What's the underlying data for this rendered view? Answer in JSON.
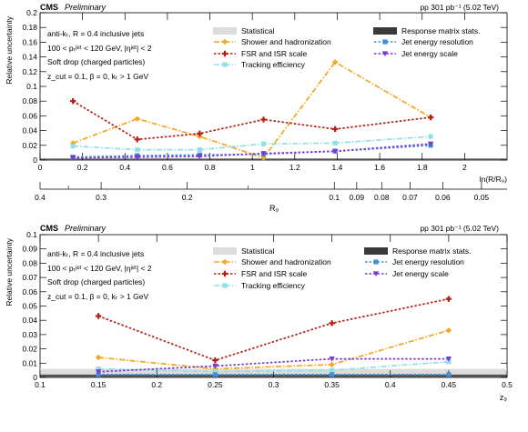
{
  "colors": {
    "shower": "#f5a623",
    "fsr": "#b22214",
    "tracking": "#8ee0e6",
    "jer": "#3f8fd8",
    "jes": "#7a38d8",
    "statistical": "#dcdcdc",
    "response": "#3a3a3a"
  },
  "markers": {
    "shower": "diamond",
    "fsr": "plus",
    "tracking": "square",
    "jer": "square",
    "jes": "triangle-down"
  },
  "labels": {
    "cms": "CMS",
    "preliminary": "Preliminary",
    "lumi": "pp 301 pb⁻¹ (5.02 TeV)",
    "algo": "anti-kₜ, R = 0.4 inclusive jets",
    "pt_cut": "100 < pₜʲᵉᵗ < 120 GeV, |ηʲᵉᵗ| < 2",
    "groomer": "Soft drop (charged particles)",
    "params_top": "z_cut = 0.1, β = 0, kₜ > 1 GeV",
    "params_bottom": "z_cut = 0.1, β = 0, kₜ > 1 GeV"
  },
  "chart_data": [
    {
      "type": "line",
      "xlabel": "ln(R/R₉)",
      "ylabel": "Relative uncertainty",
      "xlim": [
        0,
        2.2
      ],
      "ylim": [
        0,
        0.2
      ],
      "x_ticks": [
        "0",
        "0.2",
        "0.4",
        "0.6",
        "0.8",
        "1",
        "1.2",
        "1.4",
        "1.6",
        "1.8",
        "2"
      ],
      "y_ticks": [
        "0",
        "0.02",
        "0.04",
        "0.06",
        "0.08",
        "0.1",
        "0.12",
        "0.14",
        "0.16",
        "0.18",
        "0.2"
      ],
      "secondary_axis": {
        "label": "R₉",
        "ticks": [
          "0.4",
          "0.3",
          "0.2",
          "0.1",
          "0.09",
          "0.08",
          "0.07",
          "0.06",
          "0.05"
        ]
      },
      "x": [
        0.155,
        0.458,
        0.752,
        1.053,
        1.39,
        1.84
      ],
      "series": [
        {
          "name": "Statistical",
          "key": "statistical",
          "style": "band",
          "values": [
            0.002,
            0.002,
            0.002,
            0.002,
            0.002,
            0.002
          ]
        },
        {
          "name": "Response matrix stats.",
          "key": "response",
          "style": "band",
          "values": [
            0.002,
            0.002,
            0.002,
            0.002,
            0.002,
            0.002
          ]
        },
        {
          "name": "Shower and hadronization",
          "key": "shower",
          "values": [
            0.023,
            0.056,
            0.032,
            0.003,
            0.133,
            0.058
          ]
        },
        {
          "name": "FSR and ISR scale",
          "key": "fsr",
          "values": [
            0.08,
            0.028,
            0.036,
            0.055,
            0.042,
            0.058
          ]
        },
        {
          "name": "Tracking efficiency",
          "key": "tracking",
          "values": [
            0.019,
            0.014,
            0.014,
            0.022,
            0.023,
            0.032
          ]
        },
        {
          "name": "Jet energy resolution",
          "key": "jer",
          "values": [
            0.004,
            0.006,
            0.007,
            0.008,
            0.012,
            0.02
          ]
        },
        {
          "name": "Jet energy scale",
          "key": "jes",
          "values": [
            0.003,
            0.004,
            0.005,
            0.009,
            0.012,
            0.022
          ]
        }
      ],
      "grid": false,
      "legend": "top-right"
    },
    {
      "type": "line",
      "xlabel": "z₉",
      "ylabel": "Relative uncertainty",
      "xlim": [
        0.1,
        0.5
      ],
      "ylim": [
        0,
        0.1
      ],
      "x_ticks": [
        "0.1",
        "0.15",
        "0.2",
        "0.25",
        "0.3",
        "0.35",
        "0.4",
        "0.45",
        "0.5"
      ],
      "y_ticks": [
        "0",
        "0.01",
        "0.02",
        "0.03",
        "0.04",
        "0.05",
        "0.06",
        "0.07",
        "0.08",
        "0.09",
        "0.1"
      ],
      "x": [
        0.15,
        0.25,
        0.35,
        0.45
      ],
      "series": [
        {
          "name": "Statistical",
          "key": "statistical",
          "style": "band",
          "values": [
            0.006,
            0.006,
            0.006,
            0.006
          ]
        },
        {
          "name": "Response matrix stats.",
          "key": "response",
          "style": "band",
          "values": [
            0.002,
            0.002,
            0.002,
            0.002
          ]
        },
        {
          "name": "Shower and hadronization",
          "key": "shower",
          "values": [
            0.014,
            0.006,
            0.009,
            0.033
          ]
        },
        {
          "name": "FSR and ISR scale",
          "key": "fsr",
          "values": [
            0.043,
            0.012,
            0.038,
            0.055
          ]
        },
        {
          "name": "Tracking efficiency",
          "key": "tracking",
          "values": [
            0.006,
            0.004,
            0.005,
            0.011
          ]
        },
        {
          "name": "Jet energy resolution",
          "key": "jer",
          "values": [
            0.002,
            0.002,
            0.002,
            0.002
          ]
        },
        {
          "name": "Jet energy scale",
          "key": "jes",
          "values": [
            0.004,
            0.008,
            0.013,
            0.013
          ]
        }
      ],
      "grid": false,
      "legend": "top-right"
    }
  ]
}
